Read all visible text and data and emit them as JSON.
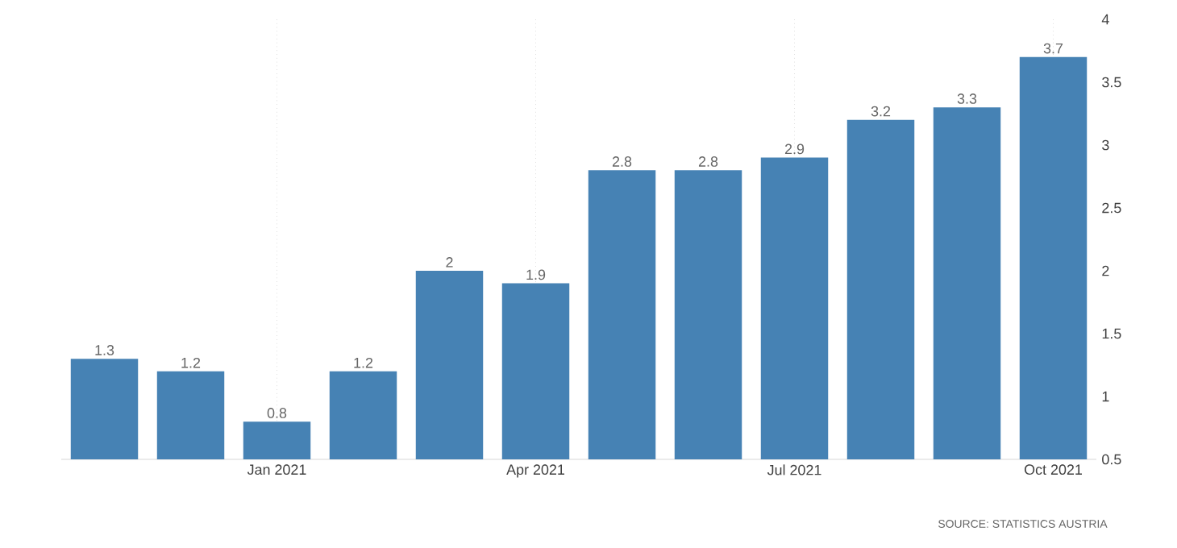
{
  "chart_data": {
    "type": "bar",
    "categories": [
      null,
      null,
      "Jan 2021",
      null,
      null,
      "Apr 2021",
      null,
      null,
      "Jul 2021",
      null,
      null,
      "Oct 2021"
    ],
    "values": [
      1.3,
      1.2,
      0.8,
      1.2,
      2,
      1.9,
      2.8,
      2.8,
      2.9,
      3.2,
      3.3,
      3.7
    ],
    "color": "#4682b4",
    "ylim": [
      0.5,
      4
    ],
    "yticks": [
      0.5,
      1,
      1.5,
      2,
      2.5,
      3,
      3.5,
      4
    ],
    "grid": "x",
    "data_labels": true,
    "annotations": [
      "SOURCE: STATISTICS AUSTRIA"
    ]
  }
}
